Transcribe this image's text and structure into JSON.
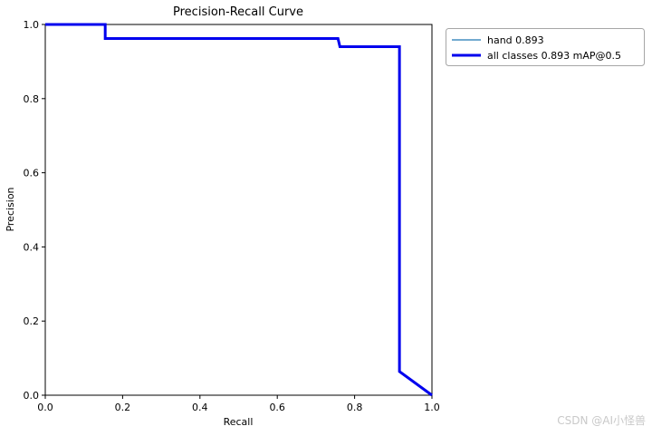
{
  "chart_data": {
    "type": "line",
    "title": "Precision-Recall Curve",
    "xlabel": "Recall",
    "ylabel": "Precision",
    "xlim": [
      0.0,
      1.0
    ],
    "ylim": [
      0.0,
      1.0
    ],
    "xticks": [
      0.0,
      0.2,
      0.4,
      0.6,
      0.8,
      1.0
    ],
    "yticks": [
      0.0,
      0.2,
      0.4,
      0.6,
      0.8,
      1.0
    ],
    "grid": false,
    "legend_position": "outside-top-right",
    "series": [
      {
        "name": "hand 0.893",
        "color": "#1f77b4",
        "linewidth": 1.2,
        "points": [
          [
            0.0,
            1.0
          ],
          [
            0.155,
            1.0
          ],
          [
            0.155,
            0.962
          ],
          [
            0.757,
            0.962
          ],
          [
            0.762,
            0.94
          ],
          [
            0.916,
            0.94
          ],
          [
            0.916,
            0.064
          ],
          [
            1.0,
            0.0
          ]
        ]
      },
      {
        "name": "all classes 0.893 mAP@0.5",
        "color": "#0000ee",
        "linewidth": 3,
        "points": [
          [
            0.0,
            1.0
          ],
          [
            0.155,
            1.0
          ],
          [
            0.155,
            0.962
          ],
          [
            0.757,
            0.962
          ],
          [
            0.762,
            0.94
          ],
          [
            0.916,
            0.94
          ],
          [
            0.916,
            0.064
          ],
          [
            1.0,
            0.0
          ]
        ]
      }
    ]
  },
  "watermark": "CSDN @AI小怪兽"
}
